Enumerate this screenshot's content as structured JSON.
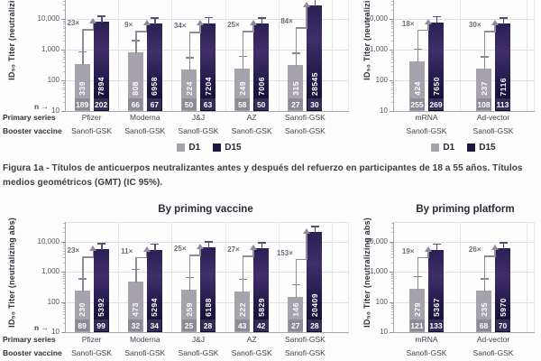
{
  "caption": {
    "text": "Figura 1a - Títulos de anticuerpos neutralizantes antes y después del refuerzo en participantes de 18 a 55 años. Títulos medios geométricos (GMT) (IC 95%)."
  },
  "legend": {
    "d1": "D1",
    "d15": "D15"
  },
  "axis_left_labels": {
    "n_label": "n →",
    "primary": "Primary series",
    "booster": "Sanofi-GSK",
    "primary_row": "Primary series",
    "booster_row": "Booster vaccine"
  },
  "colors": {
    "d1_bar": "#a7a3ad",
    "d1_nbox": "#8e8a96",
    "d15_nbox": "#352b57",
    "d15_grad_top": "#2b1f52",
    "d15_grad_mid": "#3f2f6a",
    "d15_grad_low": "#231949",
    "d15_grad_bottom": "#110b2a",
    "legend_d15": "#1f1742",
    "arrow": "#8f8b99",
    "whisker_d1": "#8a8694",
    "whisker_d15": "#555070"
  },
  "chart_data": [
    {
      "id": "top_left",
      "type": "bar",
      "title": null,
      "ylabel": "ID₅₀ Titer (neutralizing abs)",
      "yticks": [
        "10",
        "100",
        "1,000",
        "10,000"
      ],
      "ylim": [
        10,
        100000
      ],
      "yscale": "log",
      "grid": true,
      "legend_visible": true,
      "legend_entries": [
        "D1",
        "D15"
      ],
      "groups": [
        {
          "primary": "Pfizer",
          "booster": "Sanofi-GSK",
          "d1": 339,
          "d15": 7894,
          "n_d1": 189,
          "n_d15": 202,
          "fold": "23×"
        },
        {
          "primary": "Moderna",
          "booster": "Sanofi-GSK",
          "d1": 808,
          "d15": 6958,
          "n_d1": 66,
          "n_d15": 67,
          "fold": "9×"
        },
        {
          "primary": "J&J",
          "booster": "Sanofi-GSK",
          "d1": 224,
          "d15": 7204,
          "n_d1": 50,
          "n_d15": 63,
          "fold": "34×"
        },
        {
          "primary": "AZ",
          "booster": "Sanofi-GSK",
          "d1": 249,
          "d15": 7006,
          "n_d1": 58,
          "n_d15": 50,
          "fold": "25×"
        },
        {
          "primary": "Sanofi-GSK",
          "booster": "Sanofi-GSK",
          "d1": 315,
          "d15": 28545,
          "n_d1": 27,
          "n_d15": 30,
          "fold": "84×"
        }
      ]
    },
    {
      "id": "top_right",
      "type": "bar",
      "title": null,
      "ylabel": "ID₅₀ Titer (neutralizing abs)",
      "yticks": [
        "10",
        "100",
        "1,000",
        "10,000"
      ],
      "ylim": [
        10,
        100000
      ],
      "yscale": "log",
      "grid": true,
      "legend_visible": true,
      "legend_entries": [
        "D1",
        "D15"
      ],
      "groups": [
        {
          "primary": "mRNA",
          "booster": "Sanofi-GSK",
          "d1": 424,
          "d15": 7650,
          "n_d1": 255,
          "n_d15": 269,
          "fold": "18×"
        },
        {
          "primary": "Ad-vector",
          "booster": "Sanofi-GSK",
          "d1": 237,
          "d15": 7116,
          "n_d1": 108,
          "n_d15": 113,
          "fold": "30×"
        }
      ]
    },
    {
      "id": "bottom_left",
      "type": "bar",
      "title": "By priming vaccine",
      "ylabel": "ID₅₀ Titer (neutralizing abs)",
      "yticks": [
        "10",
        "100",
        "1,000",
        "10,000"
      ],
      "ylim": [
        10,
        100000
      ],
      "yscale": "log",
      "grid": true,
      "legend_visible": false,
      "legend_entries": [
        "D1",
        "D15"
      ],
      "groups": [
        {
          "primary": "Pfizer",
          "booster": "Sanofi-GSK",
          "d1": 230,
          "d15": 5392,
          "n_d1": 89,
          "n_d15": 99,
          "fold": "23×"
        },
        {
          "primary": "Moderna",
          "booster": "Sanofi-GSK",
          "d1": 473,
          "d15": 5294,
          "n_d1": 32,
          "n_d15": 34,
          "fold": "11×"
        },
        {
          "primary": "J&J",
          "booster": "Sanofi-GSK",
          "d1": 259,
          "d15": 6188,
          "n_d1": 25,
          "n_d15": 28,
          "fold": "25×"
        },
        {
          "primary": "AZ",
          "booster": "Sanofi-GSK",
          "d1": 222,
          "d15": 5829,
          "n_d1": 43,
          "n_d15": 42,
          "fold": "27×"
        },
        {
          "primary": "Sanofi-GSK",
          "booster": "Sanofi-GSK",
          "d1": 146,
          "d15": 20409,
          "n_d1": 27,
          "n_d15": 28,
          "fold": "153×"
        }
      ]
    },
    {
      "id": "bottom_right",
      "type": "bar",
      "title": "By priming platform",
      "ylabel": "ID₅₀ Titer (neutralizing abs)",
      "yticks": [
        "10",
        "100",
        "1,000",
        "10,000"
      ],
      "ylim": [
        10,
        100000
      ],
      "yscale": "log",
      "grid": true,
      "legend_visible": false,
      "legend_entries": [
        "D1",
        "D15"
      ],
      "groups": [
        {
          "primary": "mRNA",
          "booster": "Sanofi-GSK",
          "d1": 279,
          "d15": 5367,
          "n_d1": 121,
          "n_d15": 133,
          "fold": "19×"
        },
        {
          "primary": "Ad-vector",
          "booster": "Sanofi-GSK",
          "d1": 235,
          "d15": 5970,
          "n_d1": 68,
          "n_d15": 70,
          "fold": "26×"
        }
      ]
    }
  ]
}
